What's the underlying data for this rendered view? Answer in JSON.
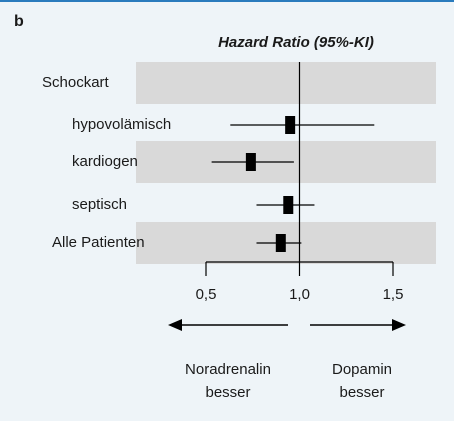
{
  "chart_data": {
    "type": "forest",
    "panel_label": "b",
    "title": "Hazard Ratio (95%-KI)",
    "categories": [
      "Schockart",
      "hypovolämisch",
      "kardiogen",
      "septisch",
      "Alle Patienten"
    ],
    "values": [
      null,
      0.95,
      0.74,
      0.94,
      0.9
    ],
    "ci_low": [
      null,
      0.63,
      0.53,
      0.77,
      0.77
    ],
    "ci_high": [
      null,
      1.4,
      0.97,
      1.08,
      1.01
    ],
    "xlim": [
      0.5,
      1.5
    ],
    "xticks": [
      {
        "value": 0.5,
        "label": "0,5"
      },
      {
        "value": 1.0,
        "label": "1,0"
      },
      {
        "value": 1.5,
        "label": "1,5"
      }
    ],
    "reference": 1.0,
    "left_label": [
      "Noradrenalin",
      "besser"
    ],
    "right_label": [
      "Dopamin",
      "besser"
    ]
  }
}
